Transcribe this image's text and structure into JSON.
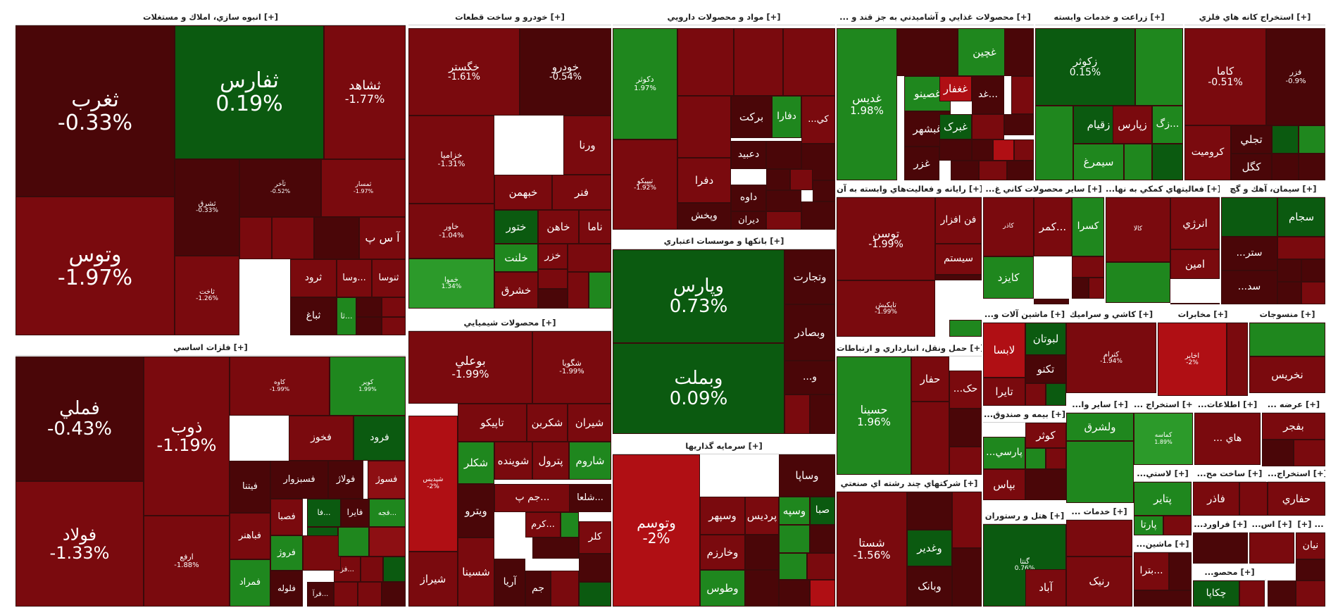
{
  "colors": {
    "dr": "#4a0608",
    "r": "#7a0a0e",
    "mr": "#8d0f13",
    "br": "#b00f14",
    "dg": "#0b5a10",
    "g": "#1f871e",
    "lg": "#2c9a2a"
  },
  "chart_data": {
    "type": "treemap",
    "title": "",
    "sectors": [
      {
        "name": "انبوه سازي، املاك و مستغلات [+]",
        "stocks": [
          {
            "symbol": "ثغرب",
            "change": "-0.33%"
          },
          {
            "symbol": "وتوس",
            "change": "-1.97%"
          },
          {
            "symbol": "ثفارس",
            "change": "0.19%"
          },
          {
            "symbol": "ثشاهد",
            "change": "-1.77%"
          },
          {
            "symbol": "ثشرق",
            "change": "-0.33%"
          },
          {
            "symbol": "ثآخر",
            "change": "-0.52%"
          },
          {
            "symbol": "ثمسار",
            "change": "-1.97%"
          },
          {
            "symbol": "آ س پ",
            "change": ""
          },
          {
            "symbol": "ثاخت",
            "change": "-1.26%"
          },
          {
            "symbol": "ثرود",
            "change": ""
          },
          {
            "symbol": "وسا...",
            "change": ""
          },
          {
            "symbol": "ثنوسا",
            "change": ""
          },
          {
            "symbol": "ثباغ",
            "change": ""
          },
          {
            "symbol": "ثا...",
            "change": ""
          }
        ]
      },
      {
        "name": "فلزات اساسي [+]",
        "stocks": [
          {
            "symbol": "فملي",
            "change": "-0.43%"
          },
          {
            "symbol": "فولاد",
            "change": "-1.33%"
          },
          {
            "symbol": "ذوب",
            "change": "-1.19%"
          },
          {
            "symbol": "ارفع",
            "change": "-1.88%"
          },
          {
            "symbol": "کاوه",
            "change": "-1.99%"
          },
          {
            "symbol": "کویر",
            "change": "1.99%"
          },
          {
            "symbol": "فخوز",
            "change": ""
          },
          {
            "symbol": "فرود",
            "change": ""
          },
          {
            "symbol": "فسبزوار",
            "change": ""
          },
          {
            "symbol": "فولاژ",
            "change": ""
          },
          {
            "symbol": "فسوژ",
            "change": ""
          },
          {
            "symbol": "فيتنا",
            "change": ""
          },
          {
            "symbol": "فباهنر",
            "change": ""
          },
          {
            "symbol": "فمراد",
            "change": ""
          },
          {
            "symbol": "فصبا",
            "change": ""
          },
          {
            "symbol": "فروژ",
            "change": ""
          },
          {
            "symbol": "فلوله",
            "change": ""
          },
          {
            "symbol": "فایرا",
            "change": ""
          },
          {
            "symbol": "فجه...",
            "change": ""
          },
          {
            "symbol": "فا...",
            "change": ""
          },
          {
            "symbol": "فرو...",
            "change": ""
          },
          {
            "symbol": "فز...",
            "change": ""
          },
          {
            "symbol": "فرآ...",
            "change": ""
          }
        ]
      },
      {
        "name": "خودرو و ساخت قطعات [+]",
        "stocks": [
          {
            "symbol": "خگستر",
            "change": "-1.61%"
          },
          {
            "symbol": "خودرو",
            "change": "-0.54%"
          },
          {
            "symbol": "خزامیا",
            "change": "-1.31%"
          },
          {
            "symbol": "ورنا",
            "change": ""
          },
          {
            "symbol": "خبهمن",
            "change": ""
          },
          {
            "symbol": "فنر",
            "change": ""
          },
          {
            "symbol": "خاور",
            "change": "-1.04%"
          },
          {
            "symbol": "ختور",
            "change": ""
          },
          {
            "symbol": "خاهن",
            "change": ""
          },
          {
            "symbol": "ناما",
            "change": ""
          },
          {
            "symbol": "خلنت",
            "change": ""
          },
          {
            "symbol": "خزر",
            "change": ""
          },
          {
            "symbol": "خشرق",
            "change": ""
          },
          {
            "symbol": "خموا",
            "change": "1.34%"
          }
        ]
      },
      {
        "name": "محصولات شيميايي [+]",
        "stocks": [
          {
            "symbol": "بوعلي",
            "change": "-1.99%"
          },
          {
            "symbol": "شگویا",
            "change": "-1.99%"
          },
          {
            "symbol": "تاپیکو",
            "change": ""
          },
          {
            "symbol": "شکربن",
            "change": ""
          },
          {
            "symbol": "شیران",
            "change": ""
          },
          {
            "symbol": "شکلر",
            "change": ""
          },
          {
            "symbol": "شوینده",
            "change": ""
          },
          {
            "symbol": "پترول",
            "change": ""
          },
          {
            "symbol": "شاروم",
            "change": ""
          },
          {
            "symbol": "ویترو",
            "change": ""
          },
          {
            "symbol": "شیراز",
            "change": ""
          },
          {
            "symbol": "شسینا",
            "change": ""
          },
          {
            "symbol": "آریا",
            "change": ""
          },
          {
            "symbol": "جم پ...",
            "change": ""
          },
          {
            "symbol": "شلعا...",
            "change": ""
          },
          {
            "symbol": "کرم...",
            "change": ""
          },
          {
            "symbol": "کلر",
            "change": ""
          },
          {
            "symbol": "جم",
            "change": ""
          },
          {
            "symbol": "شپدیس",
            "change": "-2%"
          }
        ]
      },
      {
        "name": "مواد و محصولات دارويي [+]",
        "stocks": [
          {
            "symbol": "دکوثر",
            "change": "1.97%"
          },
          {
            "symbol": "تیپیکو",
            "change": "-1.92%"
          },
          {
            "symbol": "برکت",
            "change": ""
          },
          {
            "symbol": "دفارا",
            "change": ""
          },
          {
            "symbol": "دفرا",
            "change": ""
          },
          {
            "symbol": "دعبید",
            "change": ""
          },
          {
            "symbol": "داوه",
            "change": ""
          },
          {
            "symbol": "وپخش",
            "change": ""
          },
          {
            "symbol": "دیران",
            "change": ""
          },
          {
            "symbol": "...کي",
            "change": ""
          }
        ]
      },
      {
        "name": "بانكها و موسسات اعتباري [+]",
        "stocks": [
          {
            "symbol": "وپارس",
            "change": "0.73%"
          },
          {
            "symbol": "وبملت",
            "change": "0.09%"
          },
          {
            "symbol": "وتجارت",
            "change": ""
          },
          {
            "symbol": "وبصادر",
            "change": ""
          },
          {
            "symbol": "...و",
            "change": ""
          }
        ]
      },
      {
        "name": "سرمايه گذاريها [+]",
        "stocks": [
          {
            "symbol": "وتوسم",
            "change": "-2%"
          },
          {
            "symbol": "وساپا",
            "change": ""
          },
          {
            "symbol": "وسپهر",
            "change": ""
          },
          {
            "symbol": "پردیس",
            "change": ""
          },
          {
            "symbol": "وسپه",
            "change": ""
          },
          {
            "symbol": "صبا",
            "change": ""
          },
          {
            "symbol": "وخارزم",
            "change": ""
          },
          {
            "symbol": "وطوس",
            "change": ""
          }
        ]
      },
      {
        "name": "... محصولات غذايي و آشاميدني به جز قند و [+]",
        "stocks": [
          {
            "symbol": "غدیس",
            "change": "1.98%"
          },
          {
            "symbol": "غچین",
            "change": ""
          },
          {
            "symbol": "غصینو",
            "change": ""
          },
          {
            "symbol": "غغفار",
            "change": ""
          },
          {
            "symbol": "غبشهر",
            "change": ""
          },
          {
            "symbol": "غبرک",
            "change": ""
          },
          {
            "symbol": "غزر",
            "change": ""
          },
          {
            "symbol": "غد...",
            "change": ""
          }
        ]
      },
      {
        "name": "زراعت و خدمات وابسته [+]",
        "stocks": [
          {
            "symbol": "زکوثر",
            "change": "0.15%"
          },
          {
            "symbol": "زقیام",
            "change": ""
          },
          {
            "symbol": "زپارس",
            "change": ""
          },
          {
            "symbol": "زگ...",
            "change": ""
          },
          {
            "symbol": "سیمرغ",
            "change": ""
          }
        ]
      },
      {
        "name": "استخراج كانه هاي فلزي [+]",
        "stocks": [
          {
            "symbol": "کاما",
            "change": "-0.51%"
          },
          {
            "symbol": "فزر",
            "change": "-0.9%"
          },
          {
            "symbol": "کرومیت",
            "change": ""
          },
          {
            "symbol": "تجلي",
            "change": ""
          },
          {
            "symbol": "کگل",
            "change": ""
          }
        ]
      },
      {
        "name": "رايانه و فعاليت‌هاي وابسته به آن [+]",
        "stocks": [
          {
            "symbol": "توسن",
            "change": "-1.99%"
          },
          {
            "symbol": "فن افزار",
            "change": ""
          },
          {
            "symbol": "سیستم",
            "change": ""
          },
          {
            "symbol": "تاپکیش",
            "change": "-1.99%"
          }
        ]
      },
      {
        "name": "...سایر محصولات كاني غ [+]",
        "stocks": [
          {
            "symbol": "کاذر",
            "change": ""
          },
          {
            "symbol": "کمر...",
            "change": ""
          },
          {
            "symbol": "کسرا",
            "change": ""
          },
          {
            "symbol": "کایزد",
            "change": ""
          }
        ]
      },
      {
        "name": "...فعاليتهاي كمكي به نها [+]",
        "stocks": [
          {
            "symbol": "کالا",
            "change": ""
          },
          {
            "symbol": "انرژي",
            "change": ""
          },
          {
            "symbol": "امین",
            "change": ""
          }
        ]
      },
      {
        "name": "سيمان، آهك و گچ [+]",
        "stocks": [
          {
            "symbol": "سجام",
            "change": ""
          },
          {
            "symbol": "...ستر",
            "change": ""
          },
          {
            "symbol": "...سد",
            "change": ""
          }
        ]
      },
      {
        "name": "...ماشين آلات و [+]",
        "stocks": [
          {
            "symbol": "لبوتان",
            "change": ""
          },
          {
            "symbol": "لابسا",
            "change": ""
          },
          {
            "symbol": "تکنو",
            "change": ""
          },
          {
            "symbol": "تایرا",
            "change": ""
          }
        ]
      },
      {
        "name": "كاشي و سراميك [+]",
        "stocks": [
          {
            "symbol": "کترام",
            "change": "-1.94%"
          }
        ]
      },
      {
        "name": "مخابرات [+]",
        "stocks": [
          {
            "symbol": "اخابر",
            "change": "-2%"
          }
        ]
      },
      {
        "name": "منسوجات [+]",
        "stocks": [
          {
            "symbol": "نخریس",
            "change": ""
          }
        ]
      },
      {
        "name": "حمل ونقل، انبارداري و ارتباطات [+]",
        "stocks": [
          {
            "symbol": "حسینا",
            "change": "1.96%"
          },
          {
            "symbol": "حفار",
            "change": ""
          },
          {
            "symbol": "...حک",
            "change": ""
          }
        ]
      },
      {
        "name": "...بیمه و صندوق [+]",
        "stocks": [
          {
            "symbol": "کوثر",
            "change": ""
          },
          {
            "symbol": "...پارسي",
            "change": ""
          },
          {
            "symbol": "بپاس",
            "change": ""
          }
        ]
      },
      {
        "name": "...سایر وا [+]",
        "stocks": [
          {
            "symbol": "ولشرق",
            "change": ""
          }
        ]
      },
      {
        "name": "... استخراج [+]",
        "stocks": [
          {
            "symbol": "کماسه",
            "change": "1.89%"
          }
        ]
      },
      {
        "name": "...اطلاعات [+]",
        "stocks": [
          {
            "symbol": "... هاي",
            "change": ""
          }
        ]
      },
      {
        "name": "... عرضه [+]",
        "stocks": [
          {
            "symbol": "بفجر",
            "change": ""
          }
        ]
      },
      {
        "name": "شركتهاي چند رشته اي صنعتي [+]",
        "stocks": [
          {
            "symbol": "شستا",
            "change": "-1.56%"
          },
          {
            "symbol": "وغدیر",
            "change": ""
          },
          {
            "symbol": "وبانک",
            "change": ""
          }
        ]
      },
      {
        "name": "هتل و رستوران [+]",
        "stocks": [
          {
            "symbol": "گنتا",
            "change": "0.76%"
          },
          {
            "symbol": "آباد",
            "change": ""
          }
        ]
      },
      {
        "name": "... خدمات [+]",
        "stocks": [
          {
            "symbol": "رنیک",
            "change": ""
          }
        ]
      },
      {
        "name": "...لاستي [+]",
        "stocks": [
          {
            "symbol": "پتایر",
            "change": ""
          },
          {
            "symbol": "پارتا",
            "change": ""
          }
        ]
      },
      {
        "name": "...ساخت مح [+]",
        "stocks": [
          {
            "symbol": "فاذر",
            "change": ""
          }
        ]
      },
      {
        "name": "...استخراج [+]",
        "stocks": [
          {
            "symbol": "حفاري",
            "change": ""
          }
        ]
      },
      {
        "name": "...ماشين [+]",
        "stocks": [
          {
            "symbol": "بترا...",
            "change": ""
          }
        ]
      },
      {
        "name": "...فراورد [+]",
        "stocks": []
      },
      {
        "name": "...محصو [+]",
        "stocks": [
          {
            "symbol": "چکاپا",
            "change": ""
          }
        ]
      },
      {
        "name": "...اس [+]",
        "stocks": []
      },
      {
        "name": "[+] ...",
        "stocks": [
          {
            "symbol": "نیان",
            "change": ""
          }
        ]
      }
    ]
  }
}
